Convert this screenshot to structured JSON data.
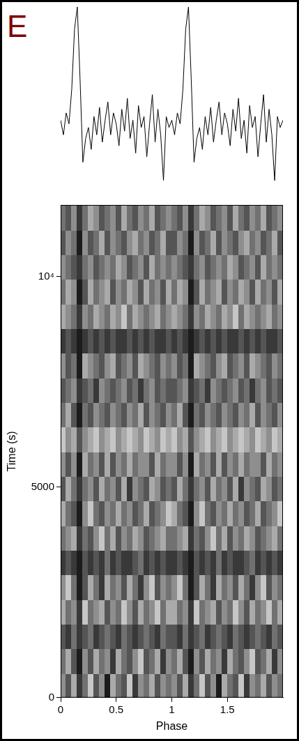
{
  "panel": "E",
  "chart_data": [
    {
      "type": "line",
      "x": [
        0,
        0.025,
        0.05,
        0.075,
        0.1,
        0.125,
        0.15,
        0.175,
        0.2,
        0.225,
        0.25,
        0.275,
        0.3,
        0.325,
        0.35,
        0.375,
        0.4,
        0.425,
        0.45,
        0.475,
        0.5,
        0.525,
        0.55,
        0.575,
        0.6,
        0.625,
        0.65,
        0.675,
        0.7,
        0.725,
        0.75,
        0.775,
        0.8,
        0.825,
        0.85,
        0.875,
        0.9,
        0.925,
        0.95,
        0.975,
        1,
        1.025,
        1.05,
        1.075,
        1.1,
        1.125,
        1.15,
        1.175,
        1.2,
        1.225,
        1.25,
        1.275,
        1.3,
        1.325,
        1.35,
        1.375,
        1.4,
        1.425,
        1.45,
        1.475,
        1.5,
        1.525,
        1.55,
        1.575,
        1.6,
        1.625,
        1.65,
        1.675,
        1.7,
        1.725,
        1.75,
        1.775,
        1.8,
        1.825,
        1.85,
        1.875,
        1.9,
        1.925,
        1.95,
        1.975,
        2
      ],
      "values": [
        38,
        30,
        42,
        36,
        55,
        88,
        100,
        60,
        15,
        28,
        34,
        22,
        40,
        30,
        45,
        26,
        38,
        48,
        30,
        42,
        36,
        24,
        44,
        32,
        50,
        28,
        38,
        20,
        46,
        34,
        40,
        18,
        36,
        52,
        26,
        44,
        30,
        5,
        40,
        34,
        38,
        30,
        42,
        36,
        55,
        88,
        100,
        60,
        15,
        28,
        34,
        22,
        40,
        30,
        45,
        26,
        38,
        48,
        30,
        42,
        36,
        24,
        44,
        32,
        50,
        28,
        38,
        20,
        46,
        34,
        40,
        18,
        36,
        52,
        26,
        44,
        30,
        5,
        40,
        34,
        38
      ],
      "xlim": [
        0,
        2
      ],
      "ylim": [
        0,
        100
      ],
      "tick_labels": false,
      "color": "#000000"
    },
    {
      "type": "heatmap",
      "xlabel": "Phase",
      "ylabel": "Time (s)",
      "xlim": [
        0,
        2
      ],
      "ylim": [
        0,
        11700
      ],
      "xticks": [
        0,
        0.5,
        1,
        1.5
      ],
      "yticks": [
        0,
        5000,
        {
          "value": 10000,
          "label": "10⁴"
        }
      ],
      "zlim": [
        0,
        9
      ],
      "x_edges": [
        0,
        0.05,
        0.1,
        0.15,
        0.2,
        0.25,
        0.3,
        0.35,
        0.4,
        0.45,
        0.5,
        0.55,
        0.6,
        0.65,
        0.7,
        0.75,
        0.8,
        0.85,
        0.9,
        0.95,
        1,
        1.05,
        1.1,
        1.15,
        1.2,
        1.25,
        1.3,
        1.35,
        1.4,
        1.45,
        1.5,
        1.55,
        1.6,
        1.65,
        1.7,
        1.75,
        1.8,
        1.85,
        1.9,
        1.95,
        2
      ],
      "y_edges": [
        0,
        585,
        1170,
        1755,
        2340,
        2925,
        3510,
        4095,
        4680,
        5265,
        5850,
        6435,
        7020,
        7605,
        8190,
        8775,
        9360,
        9945,
        10530,
        11115,
        11700
      ],
      "cells": [
        [
          4,
          6,
          3,
          7,
          5,
          2,
          6,
          4,
          8,
          3,
          5,
          6,
          2,
          7,
          4,
          5,
          3,
          6,
          4,
          5,
          4,
          6,
          3,
          7,
          5,
          2,
          6,
          4,
          8,
          3,
          5,
          6,
          2,
          7,
          4,
          5,
          3,
          6,
          4,
          5
        ],
        [
          5,
          3,
          6,
          8,
          4,
          6,
          3,
          5,
          4,
          7,
          3,
          5,
          6,
          4,
          2,
          6,
          5,
          3,
          7,
          4,
          5,
          3,
          6,
          8,
          4,
          6,
          3,
          5,
          4,
          7,
          3,
          5,
          6,
          4,
          2,
          6,
          5,
          3,
          7,
          4
        ],
        [
          6,
          7,
          5,
          7,
          6,
          5,
          7,
          6,
          5,
          6,
          7,
          5,
          6,
          7,
          6,
          5,
          6,
          7,
          5,
          6,
          6,
          7,
          5,
          7,
          6,
          5,
          7,
          6,
          5,
          6,
          7,
          5,
          6,
          7,
          6,
          5,
          6,
          7,
          5,
          6
        ],
        [
          3,
          5,
          4,
          7,
          2,
          5,
          4,
          3,
          6,
          4,
          5,
          2,
          4,
          6,
          3,
          5,
          4,
          2,
          5,
          3,
          3,
          5,
          4,
          7,
          2,
          5,
          4,
          3,
          6,
          4,
          5,
          2,
          4,
          6,
          3,
          5,
          4,
          2,
          5,
          3
        ],
        [
          4,
          2,
          5,
          8,
          6,
          3,
          5,
          7,
          3,
          5,
          4,
          6,
          3,
          5,
          7,
          4,
          2,
          6,
          4,
          5,
          4,
          2,
          5,
          8,
          6,
          3,
          5,
          7,
          3,
          5,
          4,
          6,
          3,
          5,
          7,
          4,
          2,
          6,
          4,
          5
        ],
        [
          7,
          6,
          7,
          8,
          6,
          7,
          6,
          7,
          5,
          7,
          6,
          7,
          7,
          6,
          5,
          7,
          6,
          7,
          6,
          7,
          7,
          6,
          7,
          8,
          6,
          7,
          6,
          7,
          5,
          7,
          6,
          7,
          7,
          6,
          5,
          7,
          6,
          7,
          6,
          7
        ],
        [
          5,
          4,
          3,
          7,
          5,
          6,
          4,
          2,
          5,
          3,
          6,
          4,
          5,
          3,
          4,
          6,
          5,
          4,
          3,
          5,
          5,
          4,
          3,
          7,
          5,
          6,
          4,
          2,
          5,
          3,
          6,
          4,
          5,
          3,
          4,
          6,
          5,
          4,
          3,
          5
        ],
        [
          3,
          5,
          6,
          8,
          4,
          2,
          5,
          6,
          4,
          5,
          3,
          5,
          4,
          6,
          5,
          3,
          6,
          5,
          4,
          2,
          3,
          5,
          6,
          8,
          4,
          2,
          5,
          6,
          4,
          5,
          3,
          5,
          4,
          6,
          5,
          3,
          6,
          5,
          4,
          2
        ],
        [
          6,
          3,
          5,
          7,
          5,
          4,
          6,
          3,
          5,
          4,
          6,
          3,
          7,
          4,
          5,
          6,
          3,
          4,
          6,
          5,
          6,
          3,
          5,
          7,
          5,
          4,
          6,
          3,
          5,
          4,
          6,
          3,
          7,
          4,
          5,
          6,
          3,
          4,
          6,
          5
        ],
        [
          4,
          6,
          4,
          8,
          3,
          5,
          4,
          6,
          3,
          6,
          4,
          5,
          3,
          5,
          4,
          4,
          6,
          3,
          5,
          4,
          4,
          6,
          4,
          8,
          3,
          5,
          4,
          6,
          3,
          6,
          4,
          5,
          3,
          5,
          4,
          4,
          6,
          3,
          5,
          4
        ],
        [
          2,
          4,
          3,
          6,
          4,
          3,
          2,
          4,
          3,
          2,
          4,
          3,
          2,
          3,
          4,
          2,
          3,
          4,
          2,
          3,
          2,
          4,
          3,
          6,
          4,
          3,
          2,
          4,
          3,
          2,
          4,
          3,
          2,
          3,
          4,
          2,
          3,
          4,
          2,
          3
        ],
        [
          5,
          3,
          6,
          8,
          5,
          6,
          4,
          5,
          6,
          4,
          5,
          6,
          4,
          5,
          3,
          6,
          4,
          5,
          6,
          4,
          5,
          3,
          6,
          8,
          5,
          6,
          4,
          5,
          6,
          4,
          5,
          6,
          4,
          5,
          3,
          6,
          4,
          5,
          6,
          4
        ],
        [
          6,
          5,
          4,
          7,
          6,
          5,
          7,
          4,
          5,
          6,
          5,
          4,
          6,
          5,
          7,
          5,
          4,
          6,
          5,
          6,
          6,
          5,
          4,
          7,
          6,
          5,
          7,
          4,
          5,
          6,
          5,
          4,
          6,
          5,
          7,
          5,
          4,
          6,
          5,
          6
        ],
        [
          4,
          6,
          5,
          8,
          3,
          4,
          5,
          6,
          4,
          3,
          6,
          5,
          4,
          6,
          3,
          4,
          5,
          6,
          4,
          5,
          4,
          6,
          5,
          8,
          3,
          4,
          5,
          6,
          4,
          3,
          6,
          5,
          4,
          6,
          3,
          4,
          5,
          6,
          4,
          5
        ],
        [
          7,
          6,
          7,
          8,
          7,
          6,
          7,
          6,
          7,
          6,
          7,
          7,
          6,
          7,
          6,
          7,
          6,
          7,
          7,
          6,
          7,
          6,
          7,
          8,
          7,
          6,
          7,
          6,
          7,
          6,
          7,
          7,
          6,
          7,
          6,
          7,
          6,
          7,
          7,
          6
        ],
        [
          3,
          4,
          5,
          7,
          4,
          5,
          3,
          4,
          5,
          3,
          4,
          2,
          5,
          3,
          4,
          5,
          4,
          3,
          5,
          4,
          3,
          4,
          5,
          7,
          4,
          5,
          3,
          4,
          5,
          3,
          4,
          2,
          5,
          3,
          4,
          5,
          4,
          3,
          5,
          4
        ],
        [
          5,
          3,
          4,
          8,
          6,
          3,
          5,
          4,
          3,
          6,
          4,
          5,
          3,
          4,
          6,
          3,
          5,
          4,
          6,
          3,
          5,
          3,
          4,
          8,
          6,
          3,
          5,
          4,
          3,
          6,
          4,
          5,
          3,
          4,
          6,
          3,
          5,
          4,
          6,
          3
        ],
        [
          4,
          5,
          6,
          7,
          5,
          4,
          6,
          5,
          4,
          5,
          3,
          4,
          6,
          5,
          4,
          6,
          3,
          5,
          4,
          5,
          4,
          5,
          6,
          7,
          5,
          4,
          6,
          5,
          4,
          5,
          3,
          4,
          6,
          5,
          4,
          6,
          3,
          5,
          4,
          5
        ],
        [
          6,
          4,
          5,
          8,
          4,
          6,
          5,
          3,
          6,
          4,
          5,
          6,
          4,
          3,
          5,
          4,
          6,
          5,
          3,
          6,
          6,
          4,
          5,
          8,
          4,
          6,
          5,
          3,
          6,
          4,
          5,
          6,
          4,
          3,
          5,
          4,
          6,
          5,
          3,
          6
        ],
        [
          5,
          6,
          4,
          7,
          5,
          3,
          4,
          6,
          5,
          4,
          6,
          3,
          5,
          6,
          4,
          5,
          3,
          6,
          5,
          4,
          5,
          6,
          4,
          7,
          5,
          3,
          4,
          6,
          5,
          4,
          6,
          3,
          5,
          6,
          4,
          5,
          3,
          6,
          5,
          4
        ]
      ]
    }
  ]
}
